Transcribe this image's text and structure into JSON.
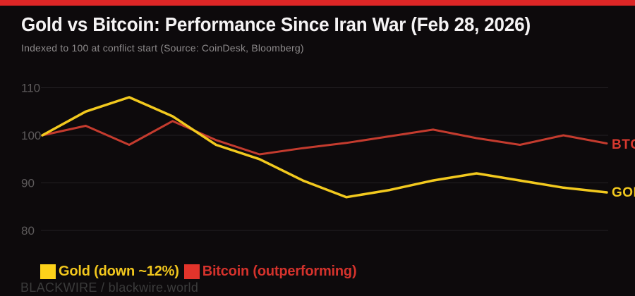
{
  "accent_bar_color": "#dd2626",
  "header": {
    "title": "Gold vs Bitcoin: Performance Since Iran War (Feb 28, 2026)",
    "subtitle": "Indexed to 100 at conflict start (Source: CoinDesk, Bloomberg)"
  },
  "chart_data": {
    "type": "line",
    "title": "Gold vs Bitcoin: Performance Since Iran War (Feb 28, 2026)",
    "subtitle": "Indexed to 100 at conflict start (Source: CoinDesk, Bloomberg)",
    "index_base": 100,
    "yticks": [
      110,
      100,
      90,
      80
    ],
    "ylim": [
      78,
      113
    ],
    "grid": "horizontal",
    "x_tick_labels": [],
    "num_points": 14,
    "legend_position": "bottom-left",
    "series": [
      {
        "name": "GOLD",
        "color": "#f2c91e",
        "label_color": "#f2c91e",
        "line_width": 3.5,
        "values": [
          100,
          105,
          108,
          104,
          98,
          95,
          90.5,
          87,
          88.5,
          90.5,
          92,
          90.5,
          89,
          88
        ]
      },
      {
        "name": "BTC",
        "color": "#c43b2e",
        "label_color": "#d6392f",
        "line_width": 3,
        "values": [
          100,
          102,
          98,
          103,
          99,
          96,
          97.3,
          98.4,
          99.8,
          101.2,
          99.4,
          98,
          100,
          98.3
        ]
      }
    ],
    "colors": {
      "background": "#0d0a0c",
      "gridline": "#232023",
      "tick_label": "#5d5a5b"
    }
  },
  "legend": {
    "items": [
      {
        "label": "Gold (down ~12%)",
        "swatch_color": "#fdd21a",
        "text_color": "#f2c71d"
      },
      {
        "label": "Bitcoin (outperforming)",
        "swatch_color": "#e2342b",
        "text_color": "#d4322c"
      }
    ]
  },
  "footer": {
    "credit": "BLACKWIRE / blackwire.world"
  }
}
